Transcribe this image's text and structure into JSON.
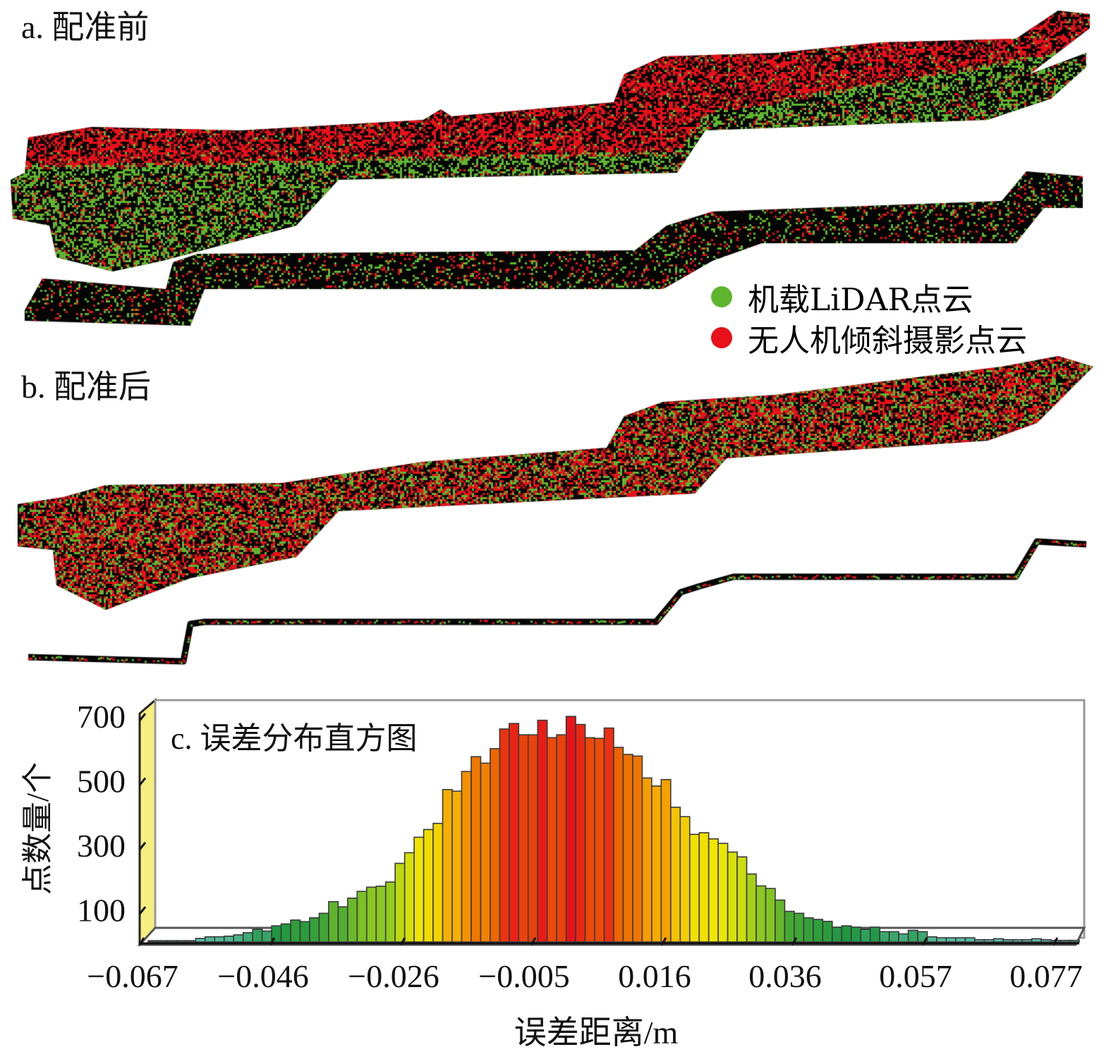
{
  "panel_a": {
    "title": "a. 配准前"
  },
  "panel_b": {
    "title": "b. 配准后"
  },
  "legend": {
    "items": [
      {
        "label": "机载LiDAR点云",
        "color": "#5fb52e"
      },
      {
        "label": "无人机倾斜摄影点云",
        "color": "#e8101a"
      }
    ]
  },
  "chart_data": {
    "type": "bar",
    "title": "c. 误差分布直方图",
    "xlabel": "误差距离/m",
    "ylabel": "点数量/个",
    "x_ticks": [
      "−0.067",
      "−0.046",
      "−0.026",
      "−0.005",
      "0.016",
      "0.036",
      "0.057",
      "0.077"
    ],
    "y_ticks": [
      "700",
      "500",
      "300",
      "100"
    ],
    "y_tick_values": [
      700,
      500,
      300,
      100
    ],
    "x_range": [
      -0.067,
      0.079
    ],
    "ylim": [
      0,
      720
    ],
    "grid": false,
    "values": [
      4,
      4,
      4,
      4,
      4,
      11,
      16,
      16,
      18,
      22,
      29,
      39,
      34,
      50,
      56,
      68,
      63,
      75,
      89,
      125,
      109,
      136,
      157,
      170,
      173,
      186,
      244,
      277,
      325,
      349,
      368,
      473,
      468,
      529,
      575,
      555,
      600,
      661,
      678,
      643,
      643,
      688,
      634,
      643,
      700,
      675,
      634,
      632,
      664,
      604,
      582,
      577,
      509,
      484,
      504,
      418,
      389,
      334,
      339,
      320,
      306,
      279,
      264,
      211,
      174,
      166,
      130,
      95,
      89,
      75,
      70,
      64,
      46,
      50,
      46,
      39,
      46,
      32,
      32,
      25,
      36,
      32,
      16,
      13,
      13,
      13,
      13,
      7,
      7,
      10,
      7,
      7,
      7,
      10,
      7,
      5,
      5,
      5
    ]
  }
}
